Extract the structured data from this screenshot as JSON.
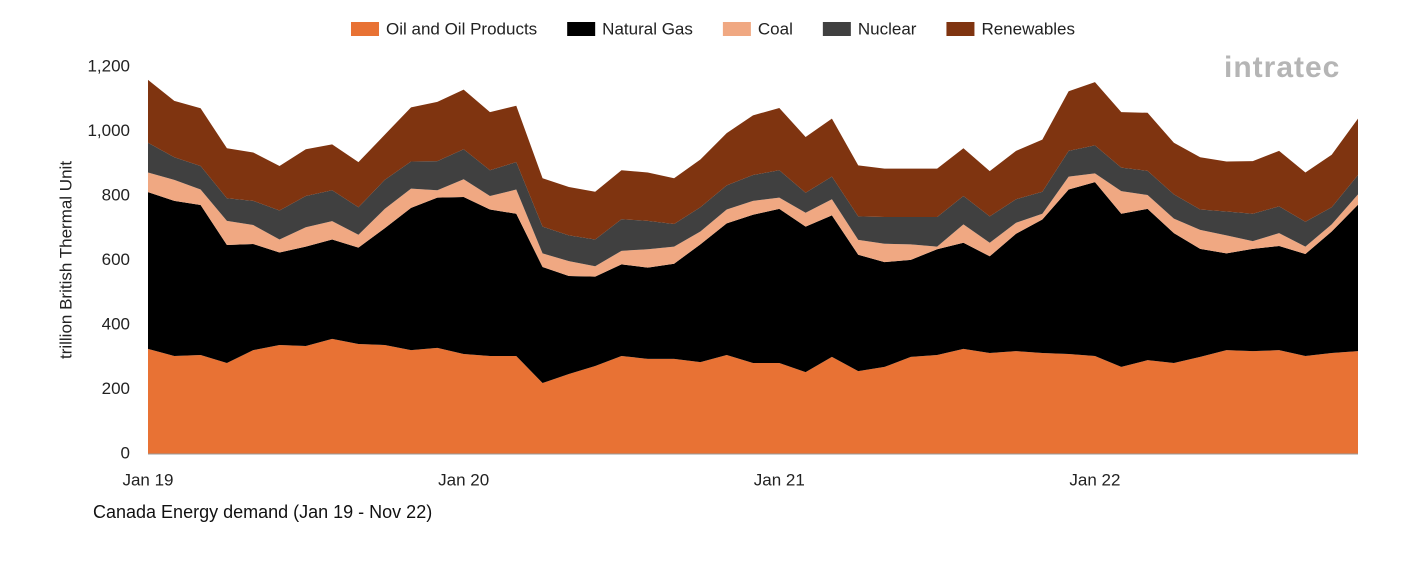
{
  "logo": "intratec",
  "chart_data": {
    "type": "stacked-area",
    "title": "Canada Energy demand (Jan 19 - Nov 22)",
    "y_label": "trillion British Thermal Unit",
    "categories": [
      "Jan 19",
      null,
      null,
      null,
      null,
      null,
      null,
      null,
      null,
      null,
      null,
      null,
      "Jan 20",
      null,
      null,
      null,
      null,
      null,
      null,
      null,
      null,
      null,
      null,
      null,
      "Jan 21",
      null,
      null,
      null,
      null,
      null,
      null,
      null,
      null,
      null,
      null,
      null,
      "Jan 22",
      null,
      null,
      null,
      null,
      null,
      null,
      null,
      null,
      null,
      null
    ],
    "ylim": [
      0,
      1200
    ],
    "yticks": [
      0,
      200,
      400,
      600,
      800,
      {
        "value": 1000,
        "label": "1,000"
      },
      {
        "value": 1200,
        "label": "1,200"
      }
    ],
    "legend": "top",
    "series": [
      {
        "name": "Oil and Oil Products",
        "color": "#e87234",
        "values": [
          326,
          304,
          307,
          282,
          322,
          338,
          335,
          357,
          341,
          338,
          322,
          329,
          310,
          304,
          304,
          220,
          248,
          273,
          304,
          295,
          295,
          285,
          307,
          282,
          282,
          254,
          301,
          257,
          270,
          301,
          307,
          326,
          313,
          319,
          313,
          310,
          304,
          270,
          291,
          282,
          301,
          322,
          319,
          322,
          304,
          313,
          319
        ]
      },
      {
        "name": "Natural Gas",
        "color": "#000000",
        "values": [
          486,
          481,
          465,
          366,
          329,
          287,
          308,
          308,
          299,
          362,
          441,
          466,
          487,
          454,
          441,
          360,
          304,
          277,
          284,
          283,
          295,
          365,
          408,
          460,
          478,
          451,
          439,
          361,
          325,
          301,
          328,
          329,
          300,
          364,
          414,
          510,
          539,
          475,
          469,
          403,
          335,
          300,
          317,
          323,
          316,
          377,
          454
        ]
      },
      {
        "name": "Coal",
        "color": "#f0a882",
        "values": [
          61,
          65,
          48,
          75,
          59,
          40,
          60,
          57,
          40,
          60,
          60,
          23,
          55,
          42,
          75,
          42,
          46,
          32,
          42,
          57,
          53,
          40,
          43,
          43,
          35,
          43,
          50,
          46,
          57,
          48,
          8,
          57,
          42,
          34,
          18,
          40,
          27,
          70,
          43,
          45,
          59,
          56,
          24,
          40,
          23,
          22,
          32
        ]
      },
      {
        "name": "Nuclear",
        "color": "#404040",
        "values": [
          92,
          70,
          73,
          70,
          75,
          90,
          97,
          96,
          85,
          90,
          84,
          90,
          93,
          80,
          85,
          83,
          80,
          83,
          98,
          88,
          70,
          75,
          75,
          80,
          85,
          62,
          70,
          73,
          83,
          85,
          92,
          88,
          82,
          73,
          68,
          80,
          87,
          73,
          75,
          75,
          63,
          74,
          85,
          83,
          77,
          53,
          60
        ]
      },
      {
        "name": "Renewables",
        "color": "#7f3410",
        "values": [
          195,
          175,
          179,
          155,
          150,
          138,
          145,
          142,
          140,
          140,
          168,
          184,
          185,
          180,
          175,
          150,
          150,
          148,
          152,
          150,
          142,
          148,
          162,
          185,
          193,
          173,
          180,
          158,
          150,
          150,
          150,
          148,
          140,
          150,
          162,
          185,
          196,
          172,
          180,
          160,
          162,
          155,
          163,
          172,
          153,
          163,
          175
        ]
      }
    ]
  }
}
